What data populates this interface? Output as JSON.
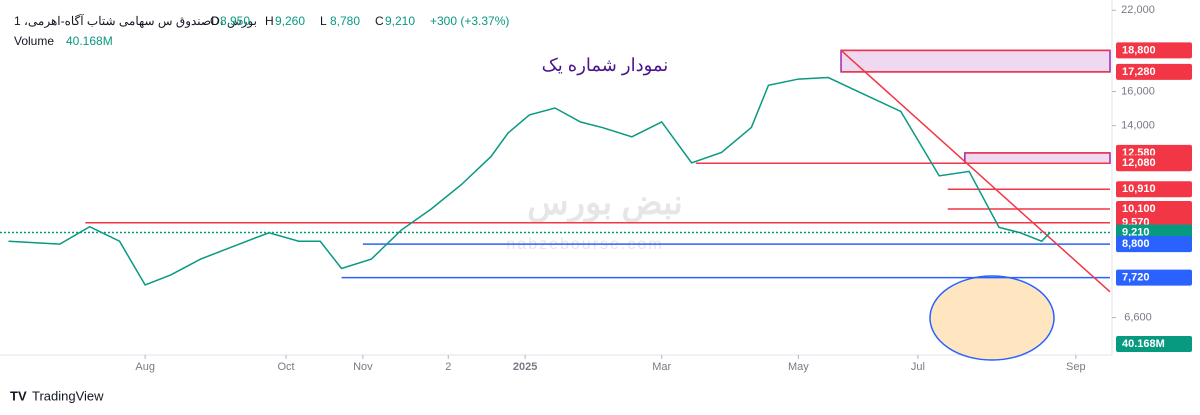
{
  "chart_data": {
    "type": "line",
    "symbol": "صندوق س سهامی شتاب آگاه-اهرمی، 1D، بورس",
    "ohlc": [
      {
        "key": "O",
        "value": 8950,
        "label": "8,950"
      },
      {
        "key": "H",
        "value": 9260,
        "label": "9,260"
      },
      {
        "key": "L",
        "value": 8780,
        "label": "8,780"
      },
      {
        "key": "C",
        "value": 9210,
        "label": "9,210"
      }
    ],
    "change": {
      "value": 300,
      "label": "+300 (+3.37%)"
    },
    "volume": {
      "name": "Volume",
      "value": 40.168,
      "label": "40.168M"
    },
    "annotation": "نمودار شماره یک",
    "watermark": [
      "نبض بورس",
      "nabzebourse.com"
    ],
    "brand": "TradingView",
    "log_scale": true,
    "color": "#089981",
    "x": [
      2,
      14,
      21,
      28,
      34,
      40,
      47,
      56,
      63,
      70,
      75,
      80,
      87,
      94,
      101,
      108,
      115,
      119,
      124,
      130,
      136,
      141,
      148,
      155,
      162,
      169,
      176,
      180,
      187,
      194,
      201,
      211,
      220,
      227,
      234,
      239,
      244,
      246
    ],
    "values": [
      8900,
      8800,
      9420,
      8900,
      7500,
      7800,
      8300,
      8800,
      9200,
      8900,
      8900,
      8000,
      8300,
      9300,
      10100,
      11100,
      12400,
      13600,
      14600,
      15000,
      14200,
      13900,
      13400,
      14200,
      12100,
      12600,
      13900,
      16400,
      16800,
      16900,
      16000,
      14800,
      11500,
      11700,
      9400,
      9200,
      8900,
      9210
    ],
    "xlim": [
      0,
      260
    ],
    "xticks": [
      {
        "value": 34,
        "label": "Aug"
      },
      {
        "value": 67,
        "label": "Oct"
      },
      {
        "value": 85,
        "label": "Nov"
      },
      {
        "value": 105,
        "label": "2"
      },
      {
        "value": 123,
        "label": "2025"
      },
      {
        "value": 155,
        "label": "Mar"
      },
      {
        "value": 187,
        "label": "May"
      },
      {
        "value": 215,
        "label": "Jul"
      },
      {
        "value": 252,
        "label": "Sep"
      }
    ],
    "ylim": [
      5700,
      22900
    ],
    "yticks": [
      {
        "value": 6600,
        "label": "6,600"
      },
      {
        "value": 14000,
        "label": "14,000"
      },
      {
        "value": 16000,
        "label": "16,000"
      },
      {
        "value": 22000,
        "label": "22,000"
      }
    ],
    "levels": [
      {
        "value": 18800,
        "label": "18,800",
        "from": 197,
        "color": "#f23645"
      },
      {
        "value": 17280,
        "label": "17,280",
        "from": 197,
        "color": "#f23645"
      },
      {
        "value": 12580,
        "label": "12,580",
        "from": 226,
        "color": "#f23645"
      },
      {
        "value": 12080,
        "label": "12,080",
        "from": 163,
        "color": "#f23645"
      },
      {
        "value": 10910,
        "label": "10,910",
        "from": 222,
        "color": "#f23645"
      },
      {
        "value": 10100,
        "label": "10,100",
        "from": 222,
        "color": "#f23645"
      },
      {
        "value": 9570,
        "label": "9,570",
        "from": 20,
        "color": "#f23645"
      },
      {
        "value": 9210,
        "label": "9,210",
        "from": 0,
        "color": "#089981"
      },
      {
        "value": 8800,
        "label": "8,800",
        "from": 85,
        "color": "#2962ff"
      },
      {
        "value": 7720,
        "label": "7,720",
        "from": 80,
        "color": "#2962ff"
      }
    ],
    "zones": [
      {
        "from": 197,
        "top": 18800,
        "bottom": 17280
      },
      {
        "from": 226,
        "top": 12580,
        "bottom": 12080
      }
    ],
    "trendline": {
      "x": [
        197,
        260
      ],
      "values": [
        18800,
        7300
      ],
      "color": "#f23645"
    }
  }
}
